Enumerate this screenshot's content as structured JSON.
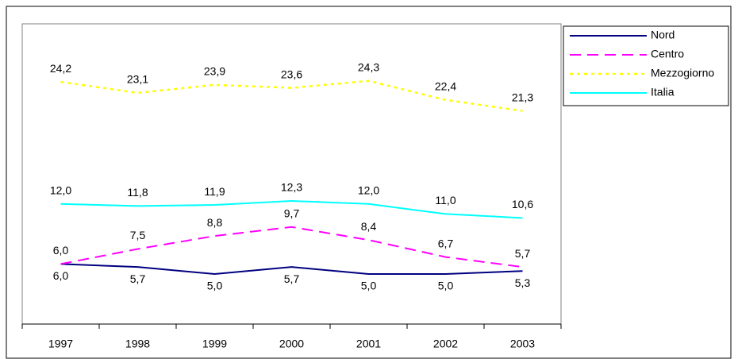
{
  "chart_data": {
    "type": "line",
    "categories": [
      "1997",
      "1998",
      "1999",
      "2000",
      "2001",
      "2002",
      "2003"
    ],
    "ylim": [
      0,
      30
    ],
    "legend": "right",
    "series": [
      {
        "name": "Nord",
        "color": "#000080",
        "dash": "solid",
        "label_side": "below",
        "values": [
          6.0,
          5.7,
          5.0,
          5.7,
          5.0,
          5.0,
          5.3
        ],
        "value_labels": [
          "6,0",
          "5,7",
          "5,0",
          "5,7",
          "5,0",
          "5,0",
          "5,3"
        ]
      },
      {
        "name": "Centro",
        "color": "#ff00ff",
        "dash": "dashed",
        "label_side": "above",
        "values": [
          6.0,
          7.5,
          8.8,
          9.7,
          8.4,
          6.7,
          5.7
        ],
        "value_labels": [
          "6,0",
          "7,5",
          "8,8",
          "9,7",
          "8,4",
          "6,7",
          "5,7"
        ]
      },
      {
        "name": "Mezzogiorno",
        "color": "#ffff00",
        "dash": "dotted",
        "label_side": "above",
        "values": [
          24.2,
          23.1,
          23.9,
          23.6,
          24.3,
          22.4,
          21.3
        ],
        "value_labels": [
          "24,2",
          "23,1",
          "23,9",
          "23,6",
          "24,3",
          "22,4",
          "21,3"
        ]
      },
      {
        "name": "Italia",
        "color": "#00ffff",
        "dash": "solid",
        "label_side": "above",
        "values": [
          12.0,
          11.8,
          11.9,
          12.3,
          12.0,
          11.0,
          10.6
        ],
        "value_labels": [
          "12,0",
          "11,8",
          "11,9",
          "12,3",
          "12,0",
          "11,0",
          "10,6"
        ]
      }
    ]
  }
}
